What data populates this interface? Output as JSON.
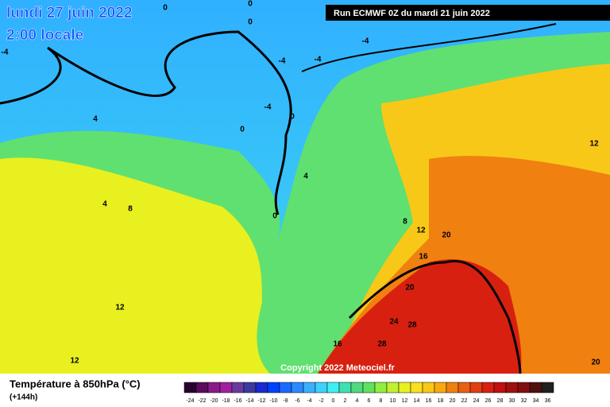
{
  "header": {
    "date": "lundi 27 juin 2022",
    "time": "2:00 locale",
    "run": "Run ECMWF 0Z du mardi 21 juin 2022"
  },
  "copyright": "Copyright 2022 Meteociel.fr",
  "legend": {
    "title": "Température à 850hPa (°C)",
    "lead": "(+144h)",
    "ticks": [
      -24,
      -22,
      -20,
      -18,
      -16,
      -14,
      -12,
      -10,
      -8,
      -6,
      -4,
      -2,
      0,
      2,
      4,
      6,
      8,
      10,
      12,
      14,
      16,
      18,
      20,
      22,
      24,
      26,
      28,
      30,
      32,
      34,
      36
    ],
    "colors": [
      "#2a0030",
      "#5c0a5c",
      "#8a1a8a",
      "#a020a0",
      "#6a3aa0",
      "#3a3aa0",
      "#1a2ad0",
      "#0040ff",
      "#1a6aff",
      "#2a8aff",
      "#3ab0ff",
      "#40d0ff",
      "#40f0f0",
      "#40e0b0",
      "#50d880",
      "#60e060",
      "#90ee40",
      "#c0f030",
      "#e8f020",
      "#f8e020",
      "#f8c818",
      "#f8a810",
      "#f08010",
      "#e86010",
      "#e04010",
      "#d82010",
      "#c01010",
      "#a01010",
      "#801010",
      "#501010",
      "#202020"
    ]
  },
  "contour_labels": [
    0,
    0,
    0,
    -4,
    -4,
    -4,
    -4,
    4,
    -4,
    0,
    0,
    4,
    0,
    4,
    8,
    8,
    12,
    20,
    16,
    20,
    12,
    24,
    28,
    16,
    28,
    12,
    12,
    20
  ]
}
